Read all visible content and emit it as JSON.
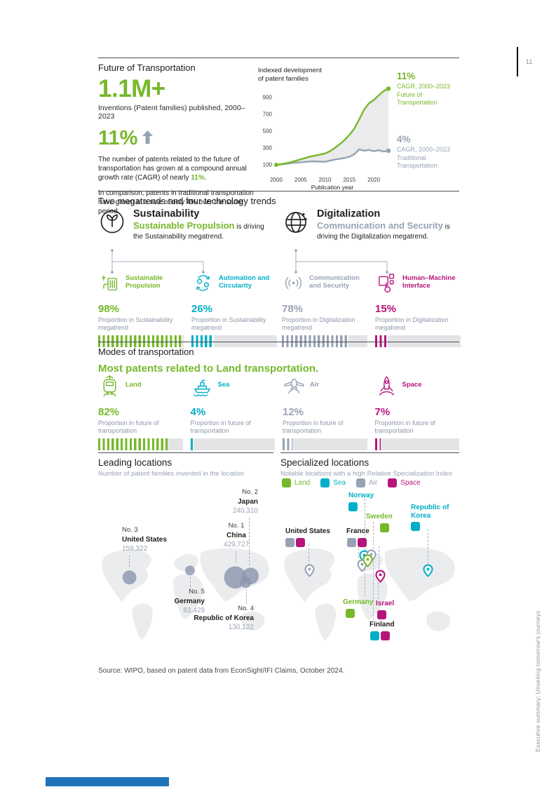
{
  "page": {
    "number": "11",
    "side_text": "Executive summary: Unveiling tomorrow's journeys",
    "source": "Source: WIPO, based on patent data from EconSight/IFI Claims, October 2024."
  },
  "colors": {
    "green": "#76b82a",
    "cyan": "#00aec7",
    "gray": "#98a2b5",
    "magenta": "#b5157b",
    "dark": "#1d1d1b",
    "textgray": "#8d96a8",
    "track": "#e3e4e6",
    "map": "#ebecee",
    "bubble": "#8b95ac",
    "blue": "#1e72b8"
  },
  "hero": {
    "section_title": "Future of Transportation",
    "big_number": "1.1M+",
    "big_caption": "Inventions (Patent families) published, 2000–2023",
    "growth_pct": "11%",
    "p1_pre": "The number of patents related to the future of transportation has grown at a compound annual growth rate (CAGR) of nearly ",
    "p1_em": "11%",
    "p1_post": ".",
    "p2_pre": "In comparison, patents in traditional transportation have grown at a rate of only ",
    "p2_em": "4%",
    "p2_post": " over the same period."
  },
  "chart_data": {
    "type": "line",
    "title": "Indexed development\nof patent families",
    "xlabel": "Publication year",
    "ylim": [
      0,
      1050
    ],
    "yticks": [
      100,
      300,
      500,
      700,
      900
    ],
    "xticks": [
      2000,
      2005,
      2010,
      2015,
      2020
    ],
    "x": [
      2000,
      2001,
      2002,
      2003,
      2004,
      2005,
      2006,
      2007,
      2008,
      2009,
      2010,
      2011,
      2012,
      2013,
      2014,
      2015,
      2016,
      2017,
      2018,
      2019,
      2020,
      2021,
      2022,
      2023
    ],
    "series": [
      {
        "name": "Future of Transportation",
        "color": "green",
        "cagr_label": "11%",
        "annotation": "CAGR, 2000–2023\nFuture of\nTransportation",
        "values": [
          100,
          108,
          118,
          132,
          148,
          165,
          182,
          198,
          210,
          222,
          235,
          262,
          300,
          345,
          395,
          455,
          530,
          640,
          755,
          830,
          870,
          925,
          975,
          1005
        ]
      },
      {
        "name": "Traditional Transportation",
        "color": "gray",
        "cagr_label": "4%",
        "annotation": "CAGR, 2000–2023\nTraditional\nTransportation",
        "values": [
          100,
          105,
          112,
          120,
          126,
          130,
          136,
          140,
          142,
          138,
          136,
          150,
          163,
          172,
          182,
          196,
          225,
          283,
          268,
          277,
          262,
          273,
          258,
          268
        ]
      }
    ]
  },
  "megatrends": {
    "section_title": "Two megatrends and four technology trends",
    "groups": [
      {
        "name": "Sustainability",
        "icon": "plant-icon",
        "highlight": "Sustainable Propulsion",
        "highlight_color": "green",
        "rest": "is driving the Sustainability megatrend.",
        "trends": [
          {
            "label": "Sustainable\nPropulsion",
            "icon": "ev-charger-icon",
            "color": "green",
            "pct": "98%",
            "value": 98,
            "desc": "Proportion in Sustainability megatrend"
          },
          {
            "label": "Automation and\nCircularity",
            "icon": "circularity-icon",
            "color": "cyan",
            "pct": "26%",
            "value": 26,
            "desc": "Proportion in Sustainability megatrend"
          }
        ]
      },
      {
        "name": "Digitalization",
        "icon": "globe-icon",
        "highlight": "Communication and Security",
        "highlight_color": "gray",
        "rest": "is driving the Digitalization megatrend.",
        "trends": [
          {
            "label": "Communication\nand Security",
            "icon": "signal-icon",
            "color": "gray",
            "pct": "78%",
            "value": 78,
            "desc": "Proportion in Digitalization megatrend"
          },
          {
            "label": "Human–Machine\nInterface",
            "icon": "hmi-icon",
            "color": "magenta",
            "pct": "15%",
            "value": 15,
            "desc": "Proportion in Digitalization megatrend"
          }
        ]
      }
    ]
  },
  "modes": {
    "section_title": "Modes of transportation",
    "headline": "Most patents related to Land transportation.",
    "items": [
      {
        "label": "Land",
        "icon": "train-icon",
        "color": "green",
        "pct": "82%",
        "value": 82,
        "desc": "Proportion in future of transportation"
      },
      {
        "label": "Sea",
        "icon": "ship-icon",
        "color": "cyan",
        "pct": "4%",
        "value": 4,
        "desc": "Proportion in future of transportation"
      },
      {
        "label": "Air",
        "icon": "plane-icon",
        "color": "gray",
        "pct": "12%",
        "value": 12,
        "desc": "Proportion in future of transportation"
      },
      {
        "label": "Space",
        "icon": "rocket-icon",
        "color": "magenta",
        "pct": "7%",
        "value": 7,
        "desc": "Proportion in future of transportation"
      }
    ]
  },
  "leading": {
    "title": "Leading locations",
    "subtitle": "Number of patent families invented in the location",
    "locations": [
      {
        "rank": "No. 1",
        "name": "China",
        "value": "429,727"
      },
      {
        "rank": "No. 2",
        "name": "Japan",
        "value": "240,310"
      },
      {
        "rank": "No. 3",
        "name": "United States",
        "value": "159,322"
      },
      {
        "rank": "No. 4",
        "name": "Republic of Korea",
        "value": "130,122"
      },
      {
        "rank": "No. 5",
        "name": "Germany",
        "value": "82,429"
      }
    ]
  },
  "specialized": {
    "title": "Specialized locations",
    "subtitle": "Notable locations with a high Relative Specialization Index",
    "legend": [
      {
        "label": "Land",
        "color": "green"
      },
      {
        "label": "Sea",
        "color": "cyan"
      },
      {
        "label": "Air",
        "color": "gray"
      },
      {
        "label": "Space",
        "color": "magenta"
      }
    ],
    "locations": [
      {
        "name": "Norway",
        "categories": [
          "Sea"
        ]
      },
      {
        "name": "Sweden",
        "categories": [
          "Land"
        ]
      },
      {
        "name": "Republic of Korea",
        "categories": [
          "Sea"
        ]
      },
      {
        "name": "United States",
        "categories": [
          "Air",
          "Space"
        ]
      },
      {
        "name": "France",
        "categories": [
          "Air",
          "Space"
        ]
      },
      {
        "name": "Germany",
        "categories": [
          "Land"
        ]
      },
      {
        "name": "Israel",
        "categories": [
          "Space"
        ]
      },
      {
        "name": "Finland",
        "categories": [
          "Sea",
          "Space"
        ]
      }
    ]
  }
}
